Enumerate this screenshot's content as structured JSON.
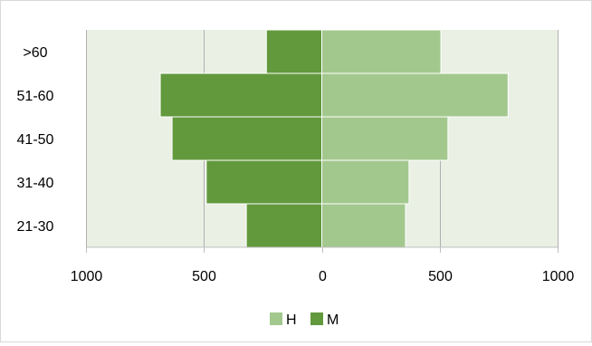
{
  "chart_data": {
    "type": "bar",
    "orientation": "horizontal",
    "layout": "population-pyramid",
    "categories": [
      ">60",
      "51-60",
      "41-50",
      "31-40",
      "21-30"
    ],
    "series": [
      {
        "name": "H",
        "side": "right",
        "color": "#a3c88e",
        "values": [
          505,
          790,
          535,
          370,
          355
        ]
      },
      {
        "name": "M",
        "side": "left",
        "color": "#62993d",
        "values": [
          235,
          685,
          635,
          490,
          320
        ]
      }
    ],
    "x_ticks": [
      "1000",
      "500",
      "0",
      "500",
      "1000"
    ],
    "xlim": [
      -1000,
      1000
    ],
    "grid": true,
    "plot_background": "#eaf0e4",
    "legend_position": "bottom"
  }
}
